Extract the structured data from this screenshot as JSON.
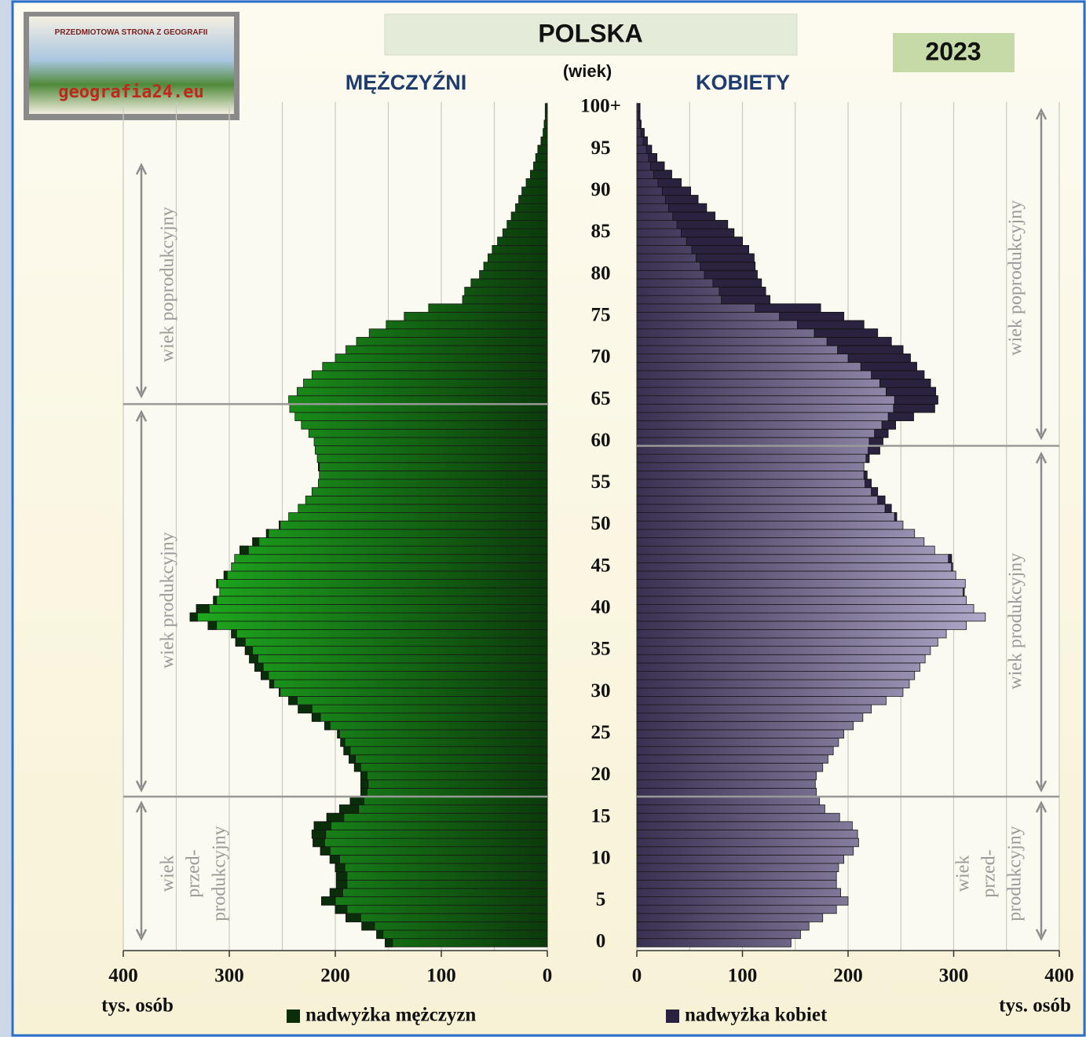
{
  "logo": {
    "line1": "PRZEDMIOTOWA STRONA Z GEOGRAFII",
    "line2": "geografia24.eu"
  },
  "chart_data": {
    "type": "pyramid",
    "title": "POLSKA",
    "year": "2023",
    "y_label": "(wiek)",
    "x_label": "tys. osób",
    "categories": [
      0,
      null,
      null,
      null,
      null,
      5,
      null,
      null,
      null,
      null,
      10,
      null,
      null,
      null,
      null,
      15,
      null,
      null,
      null,
      null,
      20,
      null,
      null,
      null,
      null,
      25,
      null,
      null,
      null,
      null,
      30,
      null,
      null,
      null,
      null,
      35,
      null,
      null,
      null,
      null,
      40,
      null,
      null,
      null,
      null,
      45,
      null,
      null,
      null,
      null,
      50,
      null,
      null,
      null,
      null,
      55,
      null,
      null,
      null,
      null,
      60,
      null,
      null,
      null,
      null,
      65,
      null,
      null,
      null,
      null,
      70,
      null,
      null,
      null,
      null,
      75,
      null,
      null,
      null,
      null,
      80,
      null,
      null,
      null,
      null,
      85,
      null,
      null,
      null,
      null,
      90,
      null,
      null,
      null,
      null,
      95,
      null,
      null,
      null,
      null,
      "100+"
    ],
    "xlim": [
      0,
      400
    ],
    "xticks": [
      0,
      100,
      200,
      300,
      400
    ],
    "xgrid": [
      0,
      50,
      100,
      150,
      200,
      250,
      300,
      350,
      400
    ],
    "series": [
      {
        "name": "MĘŻCZYŹNI",
        "surplus_label": "nadwyżka mężczyzn",
        "color": "#22c022",
        "dark": "#0c3a0c",
        "surplus_color": "#0a2e0a",
        "zone_bounds": [
          18,
          65
        ],
        "values": [
          153,
          161,
          175,
          190,
          200,
          213,
          205,
          199,
          199,
          200,
          205,
          214,
          221,
          222,
          220,
          208,
          196,
          186,
          176,
          176,
          176,
          182,
          187,
          192,
          195,
          198,
          210,
          222,
          235,
          244,
          253,
          262,
          270,
          276,
          281,
          285,
          294,
          298,
          320,
          337,
          331,
          315,
          309,
          312,
          305,
          298,
          295,
          290,
          278,
          265,
          253,
          244,
          235,
          228,
          222,
          216,
          215,
          216,
          217,
          219,
          220,
          225,
          232,
          238,
          243,
          244,
          236,
          230,
          222,
          212,
          200,
          190,
          180,
          168,
          152,
          135,
          112,
          80,
          78,
          72,
          64,
          60,
          56,
          52,
          47,
          42,
          38,
          34,
          30,
          27,
          24,
          20,
          16,
          13,
          11,
          9,
          6,
          4,
          3,
          2,
          2
        ]
      },
      {
        "name": "KOBIETY",
        "surplus_label": "nadwyżka kobiet",
        "color": "#cbc3e3",
        "dark": "#3a3052",
        "surplus_color": "#2b2240",
        "zone_bounds": [
          18,
          60
        ],
        "values": [
          146,
          155,
          163,
          176,
          189,
          200,
          193,
          189,
          189,
          191,
          196,
          205,
          210,
          209,
          204,
          192,
          178,
          173,
          170,
          169,
          170,
          176,
          181,
          186,
          191,
          196,
          205,
          214,
          222,
          236,
          252,
          258,
          263,
          268,
          273,
          278,
          285,
          293,
          312,
          330,
          319,
          312,
          310,
          311,
          302,
          299,
          298,
          282,
          272,
          263,
          252,
          246,
          241,
          235,
          228,
          222,
          218,
          215,
          220,
          230,
          233,
          238,
          245,
          262,
          282,
          285,
          283,
          278,
          272,
          265,
          259,
          252,
          241,
          228,
          215,
          196,
          174,
          126,
          122,
          118,
          114,
          112,
          111,
          106,
          100,
          92,
          86,
          74,
          66,
          58,
          51,
          42,
          33,
          26,
          19,
          14,
          10,
          7,
          4,
          3,
          3
        ]
      }
    ],
    "zones": {
      "post": "wiek poprodukcyjny",
      "working": "wiek produkcyjny",
      "pre": [
        "wiek",
        "przed-",
        "produkcyjny"
      ]
    }
  }
}
